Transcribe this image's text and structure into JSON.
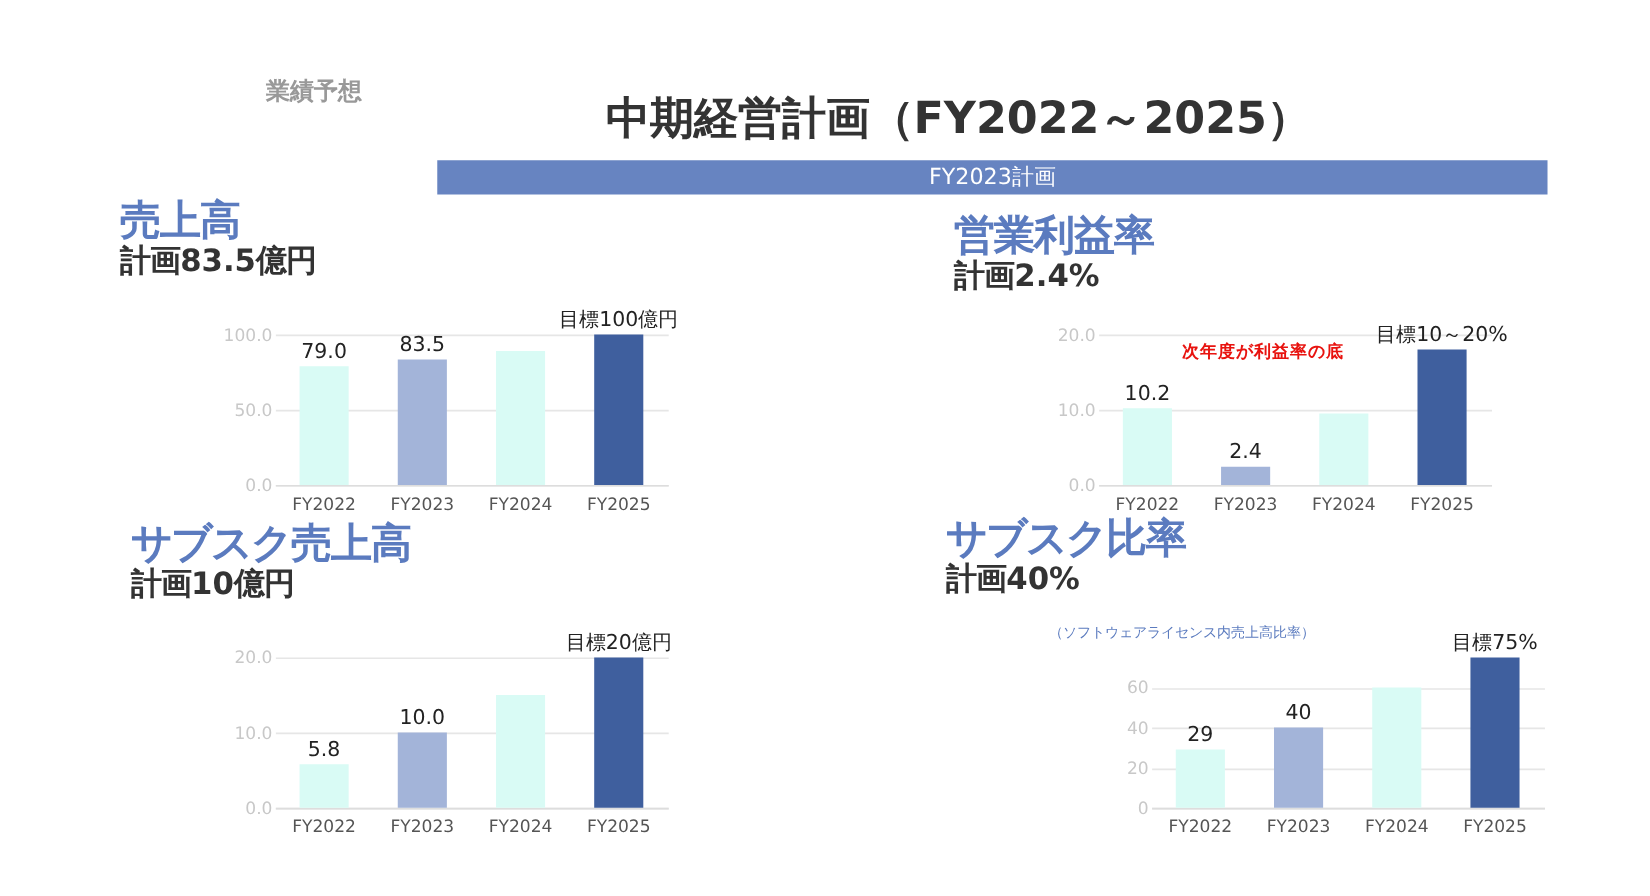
{
  "chart_data": [
    {
      "type": "other",
      "title": "中期経営計画（FY2022～2025）",
      "subtitle": "FY2023計画",
      "annotations": [
        "業績予想"
      ]
    },
    {
      "type": "bar",
      "title": "売上高",
      "subtitle": "計画83.5億円",
      "categories": [
        "FY2022",
        "FY2023",
        "FY2024",
        "FY2025"
      ],
      "values": [
        79.0,
        83.5,
        89,
        100
      ],
      "colors": [
        "#d9fbf5",
        "#a3b4d9",
        "#d9fbf5",
        "#3f5f9e"
      ],
      "value_labels": [
        "79.0",
        "83.5",
        null,
        "目標100億円"
      ],
      "ylim": [
        0,
        100
      ],
      "yticks": [
        {
          "value": 0,
          "label": "0.0"
        },
        {
          "value": 50,
          "label": "50.0"
        },
        {
          "value": 100,
          "label": "100.0"
        }
      ],
      "grid": "y"
    },
    {
      "type": "bar",
      "title": "営業利益率",
      "subtitle": "計画2.4%",
      "categories": [
        "FY2022",
        "FY2023",
        "FY2024",
        "FY2025"
      ],
      "values": [
        10.2,
        2.4,
        9.5,
        18
      ],
      "colors": [
        "#d9fbf5",
        "#a3b4d9",
        "#d9fbf5",
        "#3f5f9e"
      ],
      "value_labels": [
        "10.2",
        "2.4",
        null,
        null
      ],
      "ylim": [
        0,
        20
      ],
      "yticks": [
        {
          "value": 0,
          "label": "0.0"
        },
        {
          "value": 10,
          "label": "10.0"
        },
        {
          "value": 20,
          "label": "20.0"
        }
      ],
      "grid": "y",
      "annotations": [
        "次年度が利益率の底",
        {
          "text": "目標10～20%",
          "x": "FY2025",
          "y": 18
        }
      ]
    },
    {
      "type": "bar",
      "title": "サブスク売上高",
      "subtitle": "計画10億円",
      "categories": [
        "FY2022",
        "FY2023",
        "FY2024",
        "FY2025"
      ],
      "values": [
        5.8,
        10.0,
        15,
        20
      ],
      "colors": [
        "#d9fbf5",
        "#a3b4d9",
        "#d9fbf5",
        "#3f5f9e"
      ],
      "value_labels": [
        "5.8",
        "10.0",
        null,
        "目標20億円"
      ],
      "ylim": [
        0,
        20
      ],
      "yticks": [
        {
          "value": 0,
          "label": "0.0"
        },
        {
          "value": 10,
          "label": "10.0"
        },
        {
          "value": 20,
          "label": "20.0"
        }
      ],
      "grid": "y"
    },
    {
      "type": "bar",
      "title": "サブスク比率",
      "subtitle": "計画40%",
      "categories": [
        "FY2022",
        "FY2023",
        "FY2024",
        "FY2025"
      ],
      "values": [
        29,
        40,
        60,
        75
      ],
      "colors": [
        "#d9fbf5",
        "#a3b4d9",
        "#d9fbf5",
        "#3f5f9e"
      ],
      "value_labels": [
        "29",
        "40",
        null,
        "目標75%"
      ],
      "ylim": [
        0,
        75
      ],
      "yticks": [
        0,
        20,
        40,
        60
      ],
      "grid": "y",
      "annotations": [
        "（ソフトウェアライセンス内売上高比率）"
      ]
    }
  ]
}
